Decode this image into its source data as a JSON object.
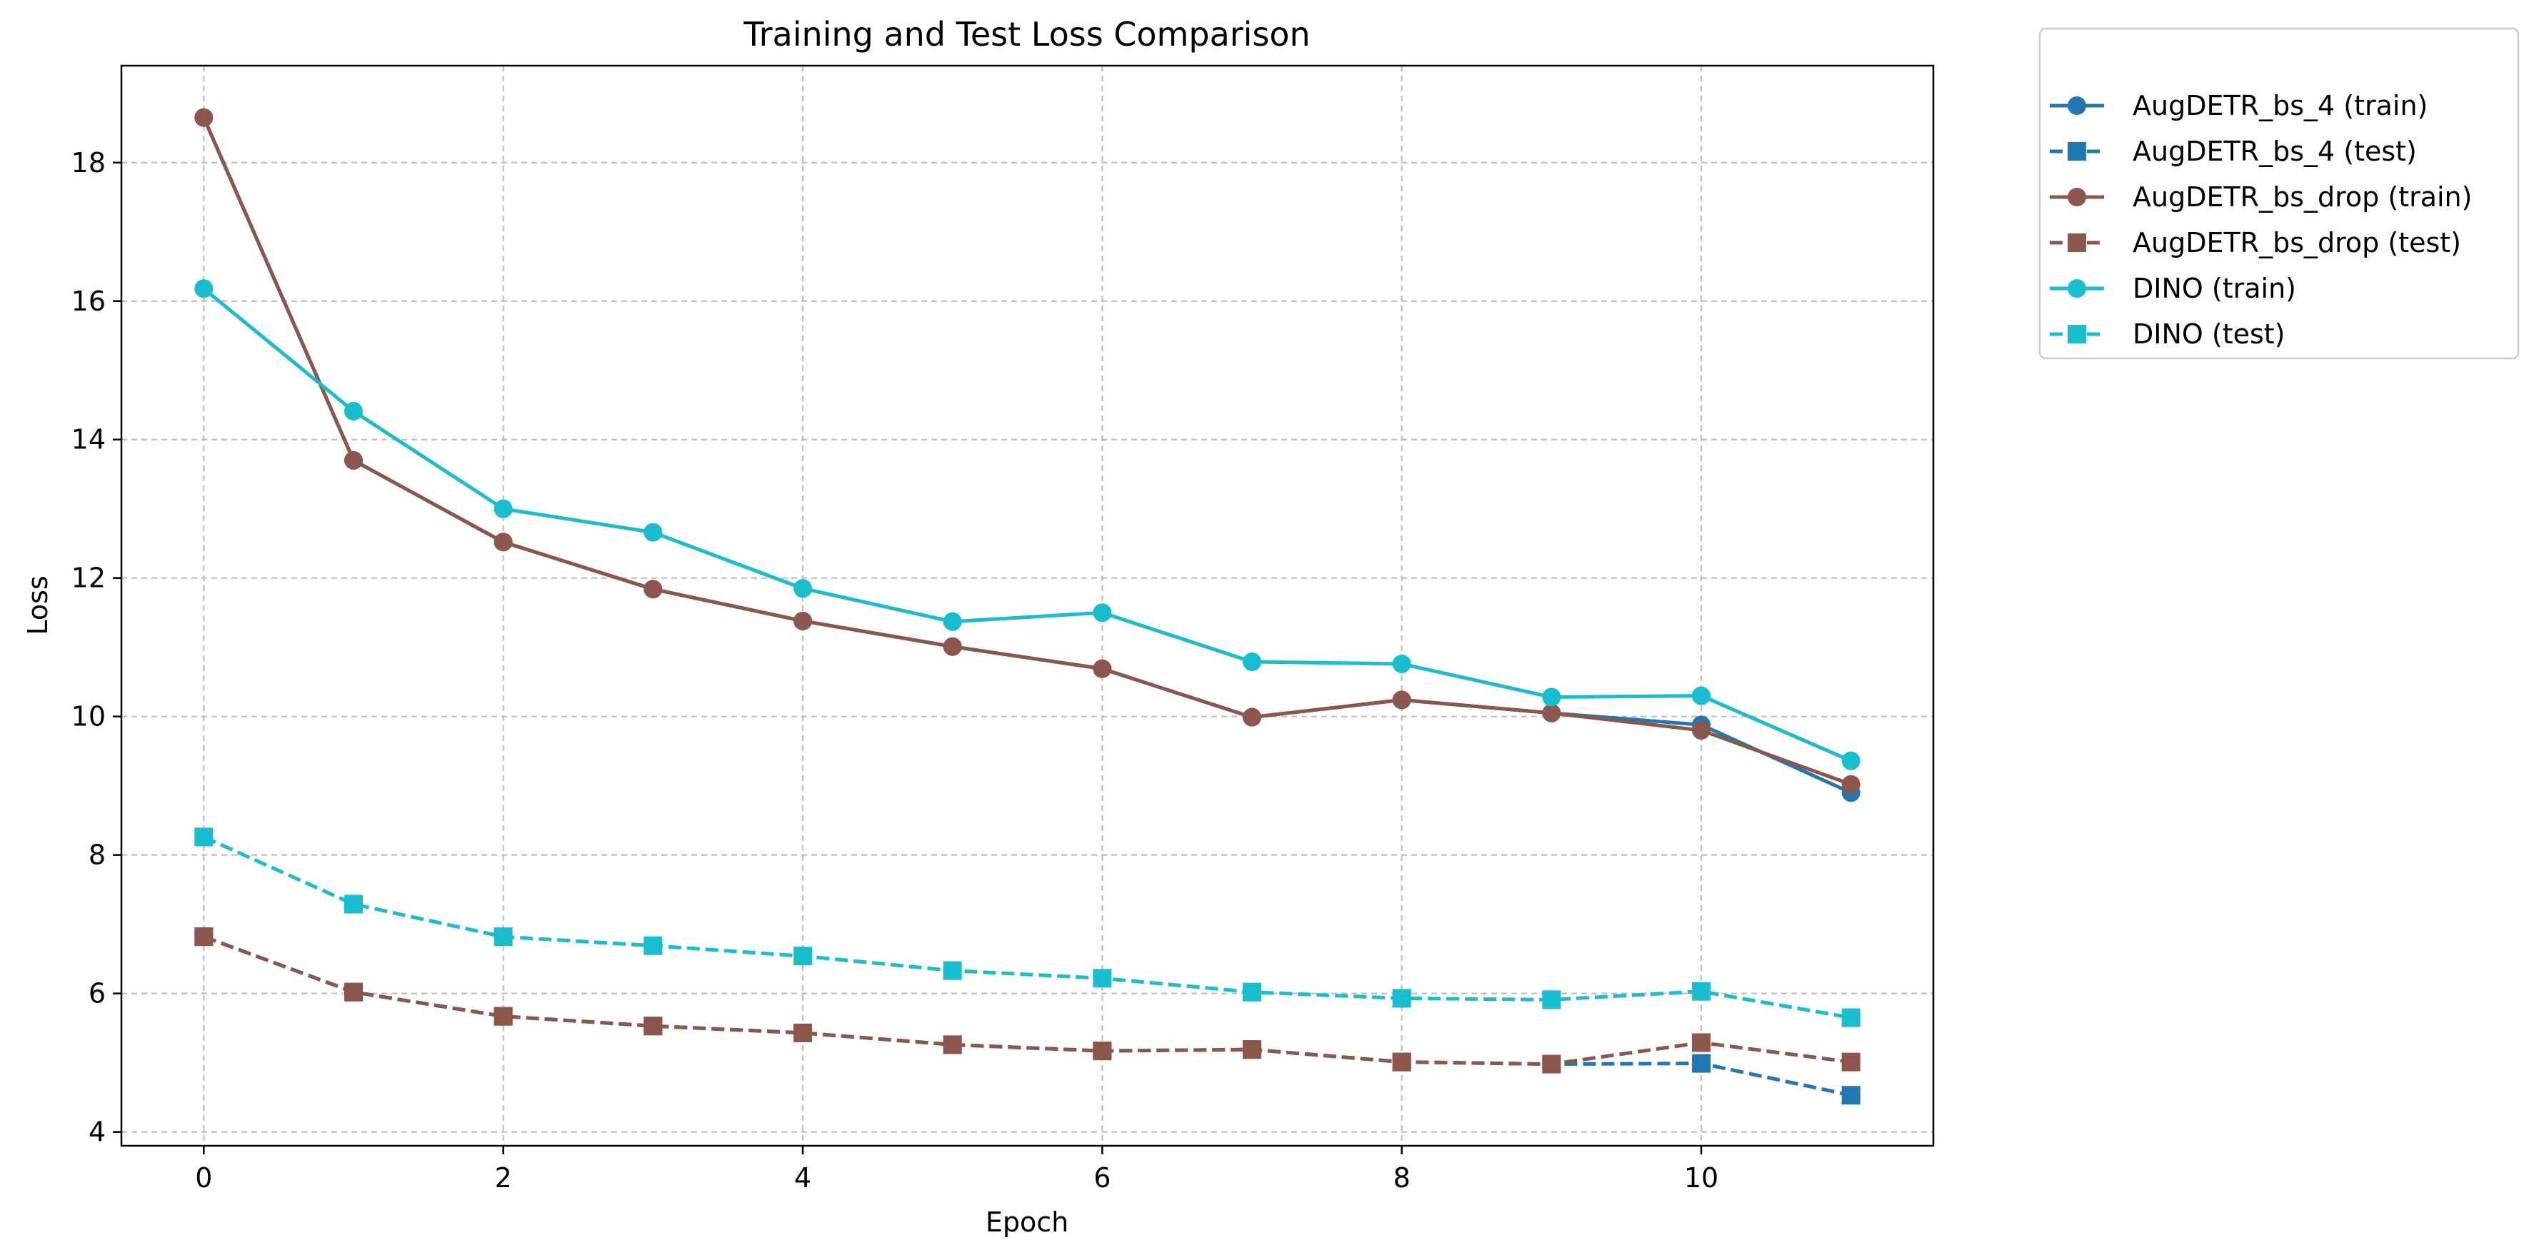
{
  "chart_data": {
    "type": "line",
    "title": "Training and Test Loss Comparison",
    "xlabel": "Epoch",
    "ylabel": "Loss",
    "x": [
      0,
      1,
      2,
      3,
      4,
      5,
      6,
      7,
      8,
      9,
      10,
      11
    ],
    "xlim": [
      -0.55,
      11.55
    ],
    "ylim": [
      3.8,
      19.4
    ],
    "xticks": [
      "0",
      "2",
      "4",
      "6",
      "8",
      "10"
    ],
    "yticks": [
      "4",
      "6",
      "8",
      "10",
      "12",
      "14",
      "16",
      "18"
    ],
    "grid": true,
    "legend_position": "outside-top-right",
    "series": [
      {
        "name": "AugDETR_bs_4 (train)",
        "color": "#1f77b4",
        "dash": "solid",
        "marker": "circle",
        "values": [
          18.65,
          13.7,
          12.52,
          11.84,
          11.38,
          11.01,
          10.69,
          9.99,
          10.24,
          10.05,
          9.88,
          8.9
        ]
      },
      {
        "name": "AugDETR_bs_4 (test)",
        "color": "#1f77b4",
        "dash": "dashed",
        "marker": "square",
        "values": [
          6.82,
          6.02,
          5.67,
          5.53,
          5.43,
          5.26,
          5.17,
          5.19,
          5.01,
          4.98,
          4.99,
          4.53
        ]
      },
      {
        "name": "AugDETR_bs_drop (train)",
        "color": "#8c564b",
        "dash": "solid",
        "marker": "circle",
        "values": [
          18.65,
          13.7,
          12.52,
          11.84,
          11.38,
          11.01,
          10.69,
          9.99,
          10.24,
          10.05,
          9.8,
          9.02
        ]
      },
      {
        "name": "AugDETR_bs_drop (test)",
        "color": "#8c564b",
        "dash": "dashed",
        "marker": "square",
        "values": [
          6.82,
          6.02,
          5.67,
          5.53,
          5.43,
          5.26,
          5.17,
          5.19,
          5.01,
          4.98,
          5.29,
          5.01
        ]
      },
      {
        "name": "DINO (train)",
        "color": "#17becf",
        "dash": "solid",
        "marker": "circle",
        "values": [
          16.18,
          14.41,
          13.0,
          12.66,
          11.85,
          11.37,
          11.5,
          10.79,
          10.76,
          10.28,
          10.3,
          9.36
        ]
      },
      {
        "name": "DINO (test)",
        "color": "#17becf",
        "dash": "dashed",
        "marker": "square",
        "values": [
          8.26,
          7.29,
          6.82,
          6.69,
          6.54,
          6.33,
          6.22,
          6.02,
          5.93,
          5.91,
          6.03,
          5.65
        ]
      }
    ]
  }
}
